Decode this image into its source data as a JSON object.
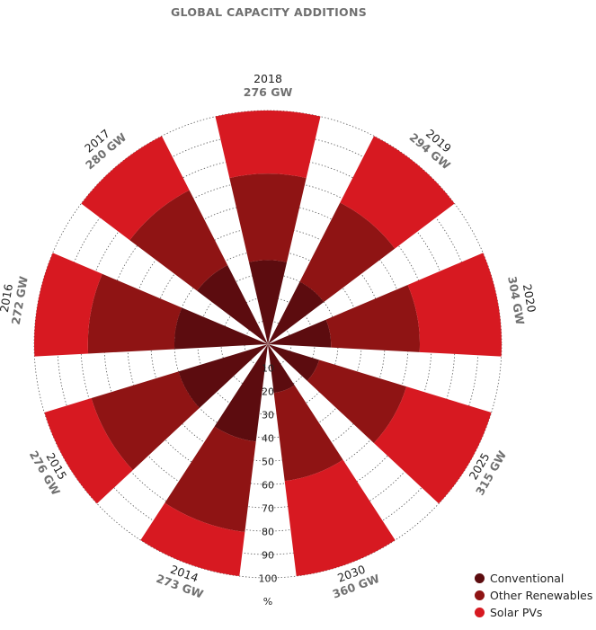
{
  "title": "GLOBAL CAPACITY ADDITIONS",
  "colors": {
    "conventional": "#5c0c0f",
    "other_renewables": "#8f1414",
    "solar_pv": "#d71921",
    "year_text": "#222222",
    "total_text": "#707070",
    "grid": "#555555"
  },
  "chart_data": {
    "type": "polar-stacked-bar",
    "unit": "GW",
    "radial_axis": {
      "min": 0,
      "max": 100,
      "ticks": [
        10,
        20,
        30,
        40,
        50,
        60,
        70,
        80,
        90,
        100
      ],
      "unit_label": "%",
      "grid": true
    },
    "series": [
      {
        "name": "Conventional",
        "key": "conventional"
      },
      {
        "name": "Other Renewables",
        "key": "other_renewables"
      },
      {
        "name": "Solar PVs",
        "key": "solar_pv"
      }
    ],
    "categories": [
      {
        "year": "2018",
        "total": "276 GW",
        "cum_percent": [
          36,
          73,
          100
        ]
      },
      {
        "year": "2019",
        "total": "294 GW",
        "cum_percent": [
          30,
          68,
          100
        ]
      },
      {
        "year": "2020",
        "total": "304 GW",
        "cum_percent": [
          27,
          65,
          100
        ]
      },
      {
        "year": "2025",
        "total": "315 GW",
        "cum_percent": [
          23,
          62,
          100
        ]
      },
      {
        "year": "2030",
        "total": "360 GW",
        "cum_percent": [
          21,
          59,
          100
        ]
      },
      {
        "year": "2014",
        "total": "273 GW",
        "cum_percent": [
          42,
          81,
          100
        ]
      },
      {
        "year": "2015",
        "total": "276 GW",
        "cum_percent": [
          40,
          79,
          100
        ]
      },
      {
        "year": "2016",
        "total": "272 GW",
        "cum_percent": [
          40,
          77,
          100
        ]
      },
      {
        "year": "2017",
        "total": "280 GW",
        "cum_percent": [
          38,
          74,
          100
        ]
      }
    ],
    "legend_position": "bottom-right"
  }
}
